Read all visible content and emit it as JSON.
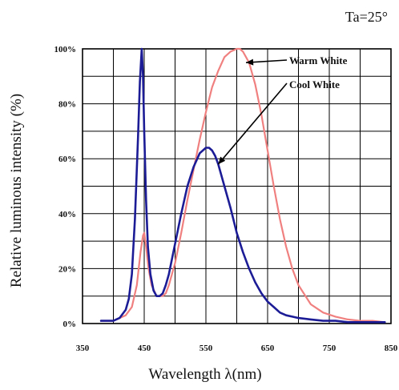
{
  "chart_data": {
    "type": "line",
    "title": "",
    "condition_note": "Ta=25°",
    "xlabel": "Wavelength  λ(nm)",
    "ylabel": "Relative luminous intensity (%)",
    "xlim": [
      350,
      850
    ],
    "ylim": [
      0,
      100
    ],
    "x_ticks": [
      350,
      450,
      550,
      650,
      750,
      850
    ],
    "x_tick_labels": [
      "350",
      "450",
      "550",
      "650",
      "750",
      "850"
    ],
    "y_ticks": [
      0,
      20,
      40,
      60,
      80,
      100
    ],
    "y_tick_labels": [
      "0%",
      "20%",
      "40%",
      "60%",
      "80%",
      "100%"
    ],
    "grid": true,
    "series": [
      {
        "name": "Cool White",
        "color": "#1c1c96",
        "x": [
          380,
          400,
          410,
          420,
          425,
          430,
          435,
          440,
          443,
          446,
          448,
          450,
          453,
          456,
          460,
          465,
          470,
          475,
          480,
          485,
          490,
          500,
          510,
          520,
          530,
          540,
          550,
          555,
          560,
          565,
          570,
          580,
          590,
          600,
          610,
          620,
          630,
          640,
          650,
          660,
          670,
          680,
          690,
          700,
          720,
          740,
          760,
          780,
          800,
          820,
          840
        ],
        "y": [
          1,
          1,
          2,
          5,
          9,
          18,
          38,
          68,
          88,
          100,
          90,
          70,
          45,
          28,
          18,
          12,
          10,
          10,
          11,
          14,
          18,
          29,
          40,
          50,
          57,
          62,
          64,
          64,
          63,
          61,
          58,
          50,
          42,
          33,
          26,
          20,
          15,
          11,
          8,
          6,
          4,
          3,
          2.5,
          2,
          1.5,
          1,
          1,
          0.5,
          0.5,
          0.5,
          0.5
        ]
      },
      {
        "name": "Warm White",
        "color": "#f08080",
        "x": [
          380,
          400,
          420,
          430,
          438,
          444,
          448,
          450,
          453,
          457,
          462,
          470,
          480,
          485,
          490,
          500,
          510,
          520,
          530,
          540,
          550,
          560,
          570,
          580,
          590,
          600,
          605,
          610,
          620,
          630,
          640,
          650,
          660,
          670,
          680,
          690,
          700,
          720,
          740,
          760,
          780,
          800,
          820,
          840
        ],
        "y": [
          1,
          1,
          3,
          6,
          14,
          26,
          32,
          33,
          28,
          20,
          14,
          10,
          10,
          11,
          14,
          22,
          33,
          45,
          56,
          67,
          77,
          86,
          92,
          97,
          99,
          100,
          100,
          99,
          95,
          87,
          76,
          63,
          50,
          38,
          28,
          20,
          14,
          7,
          4,
          2.5,
          1.5,
          1,
          1,
          0.5
        ]
      }
    ],
    "annotations": [
      {
        "text": "Warm White",
        "series": "Warm White"
      },
      {
        "text": "Cool White",
        "series": "Cool White"
      }
    ]
  }
}
